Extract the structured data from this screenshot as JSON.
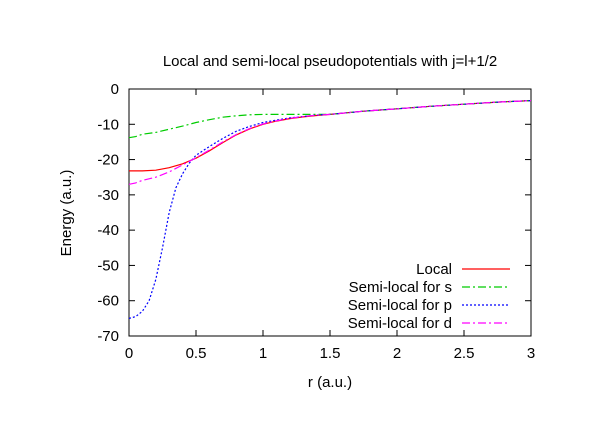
{
  "chart_data": {
    "type": "line",
    "title": "Local and semi-local pseudopotentials with j=l+1/2",
    "xlabel": "r (a.u.)",
    "ylabel": "Energy (a.u.)",
    "xlim": [
      0,
      3
    ],
    "ylim": [
      -70,
      0
    ],
    "x_ticks": [
      {
        "value": 0,
        "label": "0"
      },
      {
        "value": 0.5,
        "label": "0.5"
      },
      {
        "value": 1,
        "label": "1"
      },
      {
        "value": 1.5,
        "label": "1.5"
      },
      {
        "value": 2,
        "label": "2"
      },
      {
        "value": 2.5,
        "label": "2.5"
      },
      {
        "value": 3,
        "label": "3"
      }
    ],
    "y_ticks": [
      {
        "value": 0,
        "label": "0"
      },
      {
        "value": -10,
        "label": "-10"
      },
      {
        "value": -20,
        "label": "-20"
      },
      {
        "value": -30,
        "label": "-30"
      },
      {
        "value": -40,
        "label": "-40"
      },
      {
        "value": -50,
        "label": "-50"
      },
      {
        "value": -60,
        "label": "-60"
      },
      {
        "value": -70,
        "label": "-70"
      }
    ],
    "grid": false,
    "legend_position": "bottom-right",
    "series": [
      {
        "name": "Local",
        "color": "#ff0000",
        "dash": "solid",
        "points": [
          [
            0,
            -23.2
          ],
          [
            0.1,
            -23.2
          ],
          [
            0.2,
            -23.0
          ],
          [
            0.3,
            -22.3
          ],
          [
            0.4,
            -21.2
          ],
          [
            0.5,
            -19.6
          ],
          [
            0.6,
            -17.5
          ],
          [
            0.7,
            -15.2
          ],
          [
            0.8,
            -13.0
          ],
          [
            0.9,
            -11.3
          ],
          [
            1.0,
            -10.0
          ],
          [
            1.1,
            -9.1
          ],
          [
            1.2,
            -8.4
          ],
          [
            1.3,
            -7.9
          ],
          [
            1.4,
            -7.5
          ],
          [
            1.5,
            -7.2
          ],
          [
            1.75,
            -6.3
          ],
          [
            2.0,
            -5.6
          ],
          [
            2.25,
            -4.9
          ],
          [
            2.5,
            -4.3
          ],
          [
            2.75,
            -3.7
          ],
          [
            3.0,
            -3.3
          ]
        ]
      },
      {
        "name": "Semi-local for s",
        "color": "#00cc00",
        "dash": "dash-dot",
        "points": [
          [
            0,
            -13.8
          ],
          [
            0.05,
            -13.5
          ],
          [
            0.1,
            -12.8
          ],
          [
            0.2,
            -12.3
          ],
          [
            0.3,
            -11.4
          ],
          [
            0.4,
            -10.5
          ],
          [
            0.5,
            -9.5
          ],
          [
            0.6,
            -8.7
          ],
          [
            0.7,
            -8.0
          ],
          [
            0.8,
            -7.6
          ],
          [
            0.9,
            -7.3
          ],
          [
            1.0,
            -7.2
          ],
          [
            1.2,
            -7.2
          ],
          [
            1.4,
            -7.2
          ],
          [
            1.5,
            -7.2
          ],
          [
            1.75,
            -6.3
          ],
          [
            2.0,
            -5.6
          ],
          [
            2.25,
            -4.9
          ],
          [
            2.5,
            -4.3
          ],
          [
            2.75,
            -3.7
          ],
          [
            3.0,
            -3.3
          ]
        ]
      },
      {
        "name": "Semi-local for p",
        "color": "#0000ff",
        "dash": "dotted",
        "points": [
          [
            0,
            -65.0
          ],
          [
            0.05,
            -64.5
          ],
          [
            0.1,
            -63.0
          ],
          [
            0.15,
            -60.0
          ],
          [
            0.2,
            -54.0
          ],
          [
            0.25,
            -45.0
          ],
          [
            0.3,
            -35.0
          ],
          [
            0.35,
            -28.0
          ],
          [
            0.4,
            -24.0
          ],
          [
            0.45,
            -21.0
          ],
          [
            0.5,
            -18.8
          ],
          [
            0.6,
            -16.3
          ],
          [
            0.7,
            -14.0
          ],
          [
            0.8,
            -12.0
          ],
          [
            0.9,
            -10.6
          ],
          [
            1.0,
            -9.5
          ],
          [
            1.1,
            -8.8
          ],
          [
            1.2,
            -8.2
          ],
          [
            1.3,
            -7.8
          ],
          [
            1.4,
            -7.4
          ],
          [
            1.5,
            -7.2
          ],
          [
            1.75,
            -6.3
          ],
          [
            2.0,
            -5.6
          ],
          [
            2.25,
            -4.9
          ],
          [
            2.5,
            -4.3
          ],
          [
            2.75,
            -3.7
          ],
          [
            3.0,
            -3.3
          ]
        ]
      },
      {
        "name": "Semi-local for d",
        "color": "#ff00ff",
        "dash": "dash-dot",
        "points": [
          [
            0,
            -27.0
          ],
          [
            0.05,
            -26.6
          ],
          [
            0.1,
            -25.9
          ],
          [
            0.2,
            -25.0
          ],
          [
            0.3,
            -23.5
          ],
          [
            0.4,
            -21.5
          ],
          [
            0.5,
            -19.5
          ],
          [
            0.6,
            -17.3
          ],
          [
            0.7,
            -15.0
          ],
          [
            0.8,
            -12.9
          ],
          [
            0.9,
            -11.2
          ],
          [
            1.0,
            -9.9
          ],
          [
            1.1,
            -9.0
          ],
          [
            1.2,
            -8.3
          ],
          [
            1.3,
            -7.8
          ],
          [
            1.4,
            -7.4
          ],
          [
            1.5,
            -7.2
          ],
          [
            1.75,
            -6.3
          ],
          [
            2.0,
            -5.6
          ],
          [
            2.25,
            -4.9
          ],
          [
            2.5,
            -4.3
          ],
          [
            2.75,
            -3.7
          ],
          [
            3.0,
            -3.3
          ]
        ]
      }
    ]
  }
}
